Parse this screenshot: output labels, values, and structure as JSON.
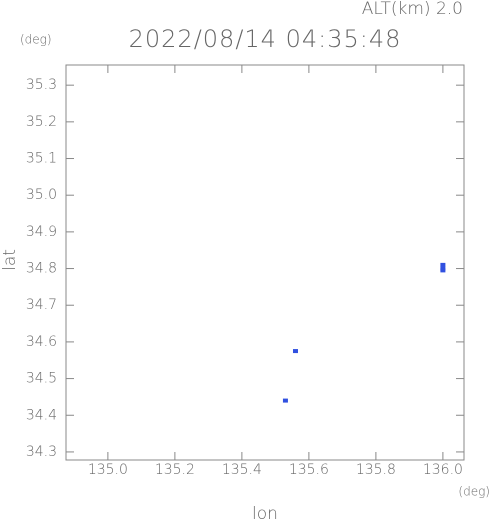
{
  "chart_data": {
    "type": "scatter",
    "title": "2022/08/14 04:35:48",
    "subtitle": "ALT(km) 2.0",
    "y_unit": "(deg)",
    "x_unit": "(deg)",
    "x_label": "lon",
    "y_label": "lat",
    "series": [
      {
        "color": "#3050e0",
        "x": [
          136.0,
          136.0,
          136.0,
          135.56,
          135.53
        ],
        "values": [
          34.81,
          34.8,
          34.795,
          34.575,
          34.44
        ]
      }
    ],
    "xlim": [
      134.875,
      136.063
    ],
    "ylim": [
      34.278,
      35.355
    ],
    "xticks": [
      {
        "value": 135.0,
        "label": "135.0"
      },
      135.2,
      135.4,
      135.6,
      135.8,
      {
        "value": 136.0,
        "label": "136.0"
      }
    ],
    "yticks": [
      34.3,
      34.4,
      34.5,
      34.6,
      34.7,
      34.8,
      34.9,
      {
        "value": 35.0,
        "label": "35.0"
      },
      35.1,
      35.2,
      35.3
    ]
  }
}
